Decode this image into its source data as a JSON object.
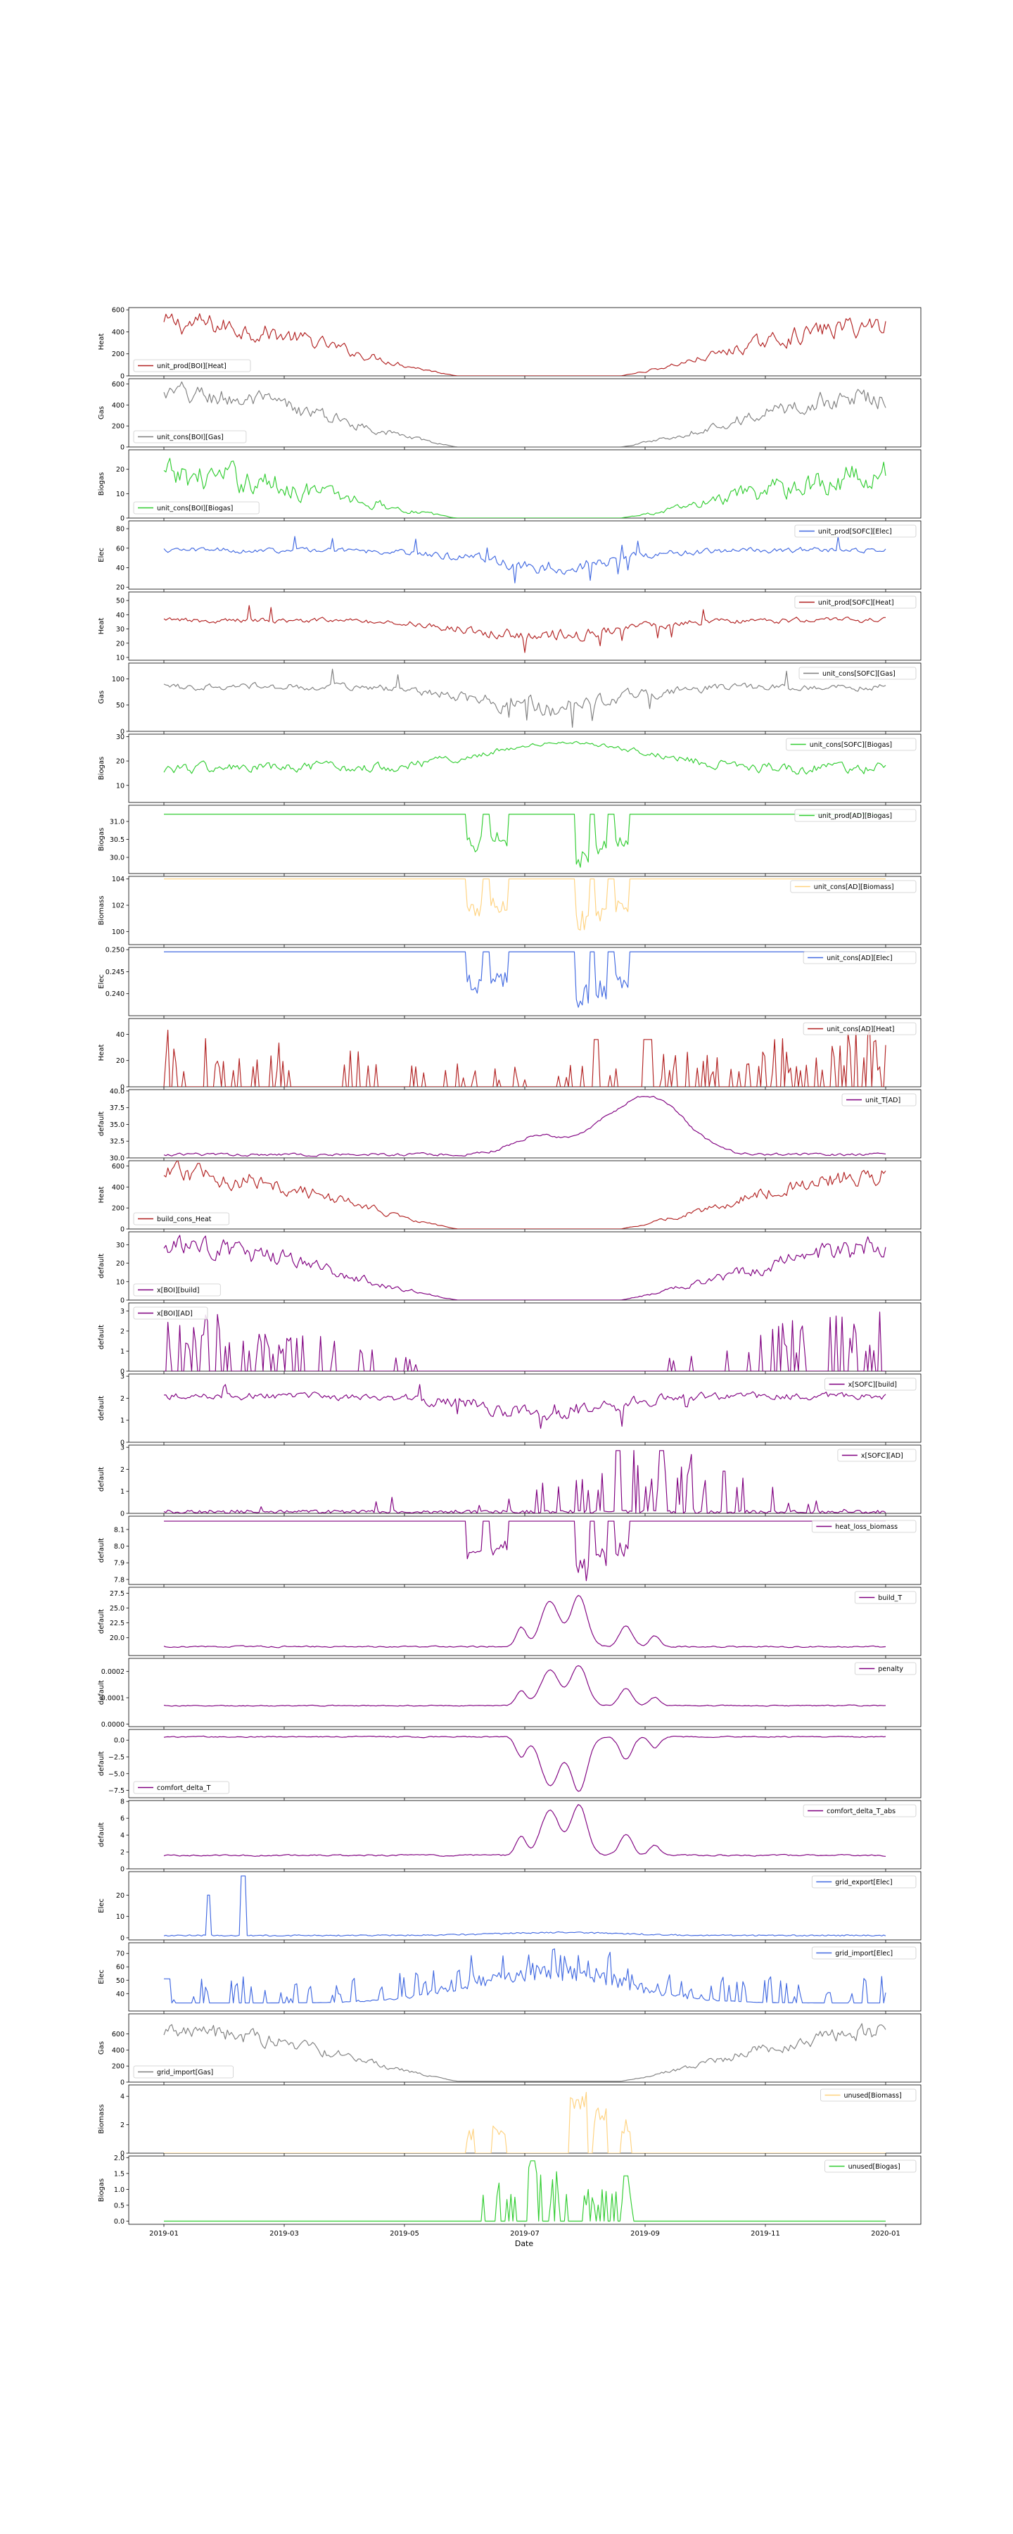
{
  "figure": {
    "xlabel": "Date",
    "x_ticks": [
      "2019-01",
      "2019-03",
      "2019-05",
      "2019-07",
      "2019-09",
      "2019-11",
      "2020-01"
    ]
  },
  "chart_data": [
    {
      "type": "line",
      "ylabel": "Heat",
      "series": [
        {
          "name": "unit_prod[BOI][Heat]",
          "color": "#b22222"
        }
      ],
      "ylim": [
        0,
        620
      ],
      "yticks": [
        "0",
        "200",
        "400",
        "600"
      ],
      "legend": "lower-left",
      "pattern": "winter",
      "base": 0,
      "amp": 470,
      "noise": 0.18
    },
    {
      "type": "line",
      "ylabel": "Gas",
      "series": [
        {
          "name": "unit_cons[BOI][Gas]",
          "color": "#808080"
        }
      ],
      "ylim": [
        0,
        650
      ],
      "yticks": [
        "0",
        "200",
        "400",
        "600"
      ],
      "legend": "lower-left",
      "pattern": "winter",
      "base": 0,
      "amp": 490,
      "noise": 0.18
    },
    {
      "type": "line",
      "ylabel": "Biogas",
      "series": [
        {
          "name": "unit_cons[BOI][Biogas]",
          "color": "#32cd32"
        }
      ],
      "ylim": [
        0,
        28
      ],
      "yticks": [
        "0",
        "10",
        "20"
      ],
      "legend": "lower-left",
      "pattern": "winter",
      "base": 0,
      "amp": 17,
      "noise": 0.3
    },
    {
      "type": "line",
      "ylabel": "Elec",
      "series": [
        {
          "name": "unit_prod[SOFC][Elec]",
          "color": "#4169e1"
        }
      ],
      "ylim": [
        18,
        88
      ],
      "yticks": [
        "20",
        "40",
        "60",
        "80"
      ],
      "legend": "upper-right",
      "pattern": "summerdip",
      "base": 58,
      "amp": 30,
      "noise": 0.12
    },
    {
      "type": "line",
      "ylabel": "Heat",
      "series": [
        {
          "name": "unit_prod[SOFC][Heat]",
          "color": "#b22222"
        }
      ],
      "ylim": [
        8,
        56
      ],
      "yticks": [
        "10",
        "20",
        "30",
        "40",
        "50"
      ],
      "legend": "upper-right",
      "pattern": "summerdip",
      "base": 36,
      "amp": 20,
      "noise": 0.12
    },
    {
      "type": "line",
      "ylabel": "Gas",
      "series": [
        {
          "name": "unit_cons[SOFC][Gas]",
          "color": "#808080"
        }
      ],
      "ylim": [
        0,
        130
      ],
      "yticks": [
        "0",
        "50",
        "100"
      ],
      "legend": "upper-right",
      "pattern": "summerdip",
      "base": 85,
      "amp": 70,
      "noise": 0.12
    },
    {
      "type": "line",
      "ylabel": "Biogas",
      "series": [
        {
          "name": "unit_cons[SOFC][Biogas]",
          "color": "#32cd32"
        }
      ],
      "ylim": [
        3,
        31
      ],
      "yticks": [
        "10",
        "20",
        "30"
      ],
      "legend": "upper-right",
      "pattern": "summerpeak",
      "base": 17,
      "amp": 13,
      "noise": 0.22
    },
    {
      "type": "line",
      "ylabel": "Biogas",
      "series": [
        {
          "name": "unit_prod[AD][Biogas]",
          "color": "#32cd32"
        }
      ],
      "ylim": [
        29.55,
        31.45
      ],
      "yticks": [
        "30.0",
        "30.5",
        "31.0"
      ],
      "legend": "upper-right",
      "pattern": "flatdips",
      "base": 31.2,
      "amp": 1.5,
      "noise": 0
    },
    {
      "type": "line",
      "ylabel": "Biomass",
      "series": [
        {
          "name": "unit_cons[AD][Biomass]",
          "color": "#ffd27f"
        }
      ],
      "ylim": [
        99,
        104.2
      ],
      "yticks": [
        "100",
        "102",
        "104"
      ],
      "legend": "upper-right",
      "pattern": "flatdips",
      "base": 104,
      "amp": 4.3,
      "noise": 0
    },
    {
      "type": "line",
      "ylabel": "Elec",
      "series": [
        {
          "name": "unit_cons[AD][Elec]",
          "color": "#4169e1"
        }
      ],
      "ylim": [
        0.235,
        0.2505
      ],
      "yticks": [
        "0.240",
        "0.245",
        "0.250"
      ],
      "legend": "upper-right",
      "pattern": "flatdips",
      "base": 0.2495,
      "amp": 0.0135,
      "noise": 0
    },
    {
      "type": "line",
      "ylabel": "Heat",
      "series": [
        {
          "name": "unit_cons[AD][Heat]",
          "color": "#b22222"
        }
      ],
      "ylim": [
        0,
        52
      ],
      "yticks": [
        "0",
        "20",
        "40"
      ],
      "legend": "upper-right",
      "pattern": "spiky",
      "base": 0,
      "amp": 45,
      "noise": 0
    },
    {
      "type": "line",
      "ylabel": "default",
      "series": [
        {
          "name": "unit_T[AD]",
          "color": "#800080"
        }
      ],
      "ylim": [
        30,
        40.2
      ],
      "yticks": [
        "30.0",
        "32.5",
        "35.0",
        "37.5",
        "40.0"
      ],
      "legend": "upper-right",
      "pattern": "tad",
      "base": 30.5,
      "amp": 9.3,
      "noise": 0
    },
    {
      "type": "line",
      "ylabel": "Heat",
      "series": [
        {
          "name": "build_cons_Heat",
          "color": "#b22222"
        }
      ],
      "ylim": [
        0,
        650
      ],
      "yticks": [
        "0",
        "200",
        "400",
        "600"
      ],
      "legend": "lower-left",
      "pattern": "winter",
      "base": 0,
      "amp": 520,
      "noise": 0.15
    },
    {
      "type": "line",
      "ylabel": "default",
      "series": [
        {
          "name": "x[BOI][build]",
          "color": "#800080"
        }
      ],
      "ylim": [
        0,
        37
      ],
      "yticks": [
        "0",
        "10",
        "20",
        "30"
      ],
      "legend": "lower-left",
      "pattern": "winter",
      "base": 0,
      "amp": 28,
      "noise": 0.18
    },
    {
      "type": "line",
      "ylabel": "default",
      "series": [
        {
          "name": "x[BOI][AD]",
          "color": "#800080"
        }
      ],
      "ylim": [
        0,
        3.4
      ],
      "yticks": [
        "0",
        "1",
        "2",
        "3"
      ],
      "legend": "upper-left",
      "pattern": "spikywinter",
      "base": 0,
      "amp": 3,
      "noise": 0
    },
    {
      "type": "line",
      "ylabel": "default",
      "series": [
        {
          "name": "x[SOFC][build]",
          "color": "#800080"
        }
      ],
      "ylim": [
        0,
        3.1
      ],
      "yticks": [
        "0",
        "1",
        "2",
        "3"
      ],
      "legend": "upper-right",
      "pattern": "summerdip",
      "base": 2.1,
      "amp": 1.2,
      "noise": 0.18
    },
    {
      "type": "line",
      "ylabel": "default",
      "series": [
        {
          "name": "x[SOFC][AD]",
          "color": "#800080"
        }
      ],
      "ylim": [
        0,
        3.1
      ],
      "yticks": [
        "0",
        "1",
        "2",
        "3"
      ],
      "legend": "upper-right",
      "pattern": "spikysummer",
      "base": 0,
      "amp": 3,
      "noise": 0
    },
    {
      "type": "line",
      "ylabel": "default",
      "series": [
        {
          "name": "heat_loss_biomass",
          "color": "#800080"
        }
      ],
      "ylim": [
        7.77,
        8.18
      ],
      "yticks": [
        "7.8",
        "7.9",
        "8.0",
        "8.1"
      ],
      "legend": "upper-right",
      "pattern": "flatdips",
      "base": 8.15,
      "amp": 0.36,
      "noise": 0
    },
    {
      "type": "line",
      "ylabel": "default",
      "series": [
        {
          "name": "build_T",
          "color": "#800080"
        }
      ],
      "ylim": [
        17,
        28.5
      ],
      "yticks": [
        "20.0",
        "22.5",
        "25.0",
        "27.5"
      ],
      "legend": "upper-right",
      "pattern": "buildT",
      "base": 18.5,
      "amp": 9,
      "noise": 0
    },
    {
      "type": "line",
      "ylabel": "default",
      "series": [
        {
          "name": "penalty",
          "color": "#800080"
        }
      ],
      "ylim": [
        -1e-05,
        0.00025
      ],
      "yticks": [
        "0.0000",
        "0.0001",
        "0.0002"
      ],
      "legend": "upper-right",
      "pattern": "buildT",
      "base": 7e-05,
      "amp": 0.00016,
      "noise": 0
    },
    {
      "type": "line",
      "ylabel": "default",
      "series": [
        {
          "name": "comfort_delta_T",
          "color": "#800080"
        }
      ],
      "ylim": [
        -8.6,
        1.6
      ],
      "yticks": [
        "−7.5",
        "−5.0",
        "−2.5",
        "0.0"
      ],
      "legend": "lower-left",
      "pattern": "negbuildT",
      "base": 0.5,
      "amp": 8.5,
      "noise": 0
    },
    {
      "type": "line",
      "ylabel": "default",
      "series": [
        {
          "name": "comfort_delta_T_abs",
          "color": "#800080"
        }
      ],
      "ylim": [
        0,
        8.1
      ],
      "yticks": [
        "0",
        "2",
        "4",
        "6",
        "8"
      ],
      "legend": "upper-right",
      "pattern": "buildT",
      "base": 1.6,
      "amp": 6.3,
      "noise": 0
    },
    {
      "type": "line",
      "ylabel": "Elec",
      "series": [
        {
          "name": "grid_export[Elec]",
          "color": "#4169e1"
        }
      ],
      "ylim": [
        -1,
        31
      ],
      "yticks": [
        "0",
        "10",
        "20"
      ],
      "legend": "upper-right",
      "pattern": "export",
      "base": 0.8,
      "amp": 0,
      "noise": 0
    },
    {
      "type": "line",
      "ylabel": "Elec",
      "series": [
        {
          "name": "grid_import[Elec]",
          "color": "#4169e1"
        }
      ],
      "ylim": [
        27,
        78
      ],
      "yticks": [
        "40",
        "50",
        "60",
        "70"
      ],
      "legend": "upper-right",
      "pattern": "import",
      "base": 33,
      "amp": 40,
      "noise": 0
    },
    {
      "type": "line",
      "ylabel": "Gas",
      "series": [
        {
          "name": "grid_import[Gas]",
          "color": "#808080"
        }
      ],
      "ylim": [
        0,
        850
      ],
      "yticks": [
        "0",
        "200",
        "400",
        "600"
      ],
      "legend": "lower-left",
      "pattern": "winter",
      "base": 10,
      "amp": 620,
      "noise": 0.15
    },
    {
      "type": "line",
      "ylabel": "Biomass",
      "series": [
        {
          "name": "unused[Biomass]",
          "color": "#ffd27f"
        }
      ],
      "ylim": [
        0,
        4.8
      ],
      "yticks": [
        "0",
        "2",
        "4"
      ],
      "legend": "upper-right",
      "pattern": "flatups",
      "base": 0,
      "amp": 4.3,
      "noise": 0
    },
    {
      "type": "line",
      "ylabel": "Biogas",
      "series": [
        {
          "name": "unused[Biogas]",
          "color": "#32cd32"
        }
      ],
      "ylim": [
        -0.1,
        2.05
      ],
      "yticks": [
        "0.0",
        "0.5",
        "1.0",
        "1.5",
        "2.0"
      ],
      "legend": "upper-right",
      "pattern": "unusedbiogas",
      "base": 0,
      "amp": 1.9,
      "noise": 0
    }
  ]
}
